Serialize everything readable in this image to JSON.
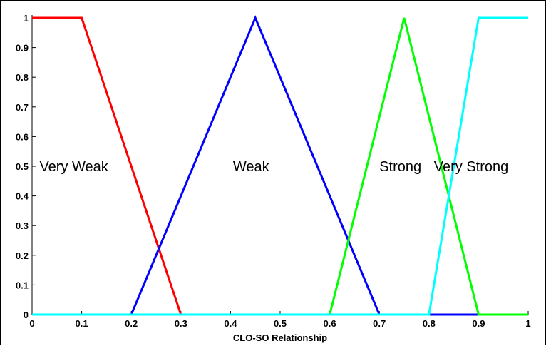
{
  "chart_data": {
    "type": "line",
    "xlabel": "CLO-SO Relationship",
    "ylabel": "",
    "xlim": [
      0,
      1
    ],
    "ylim": [
      0,
      1
    ],
    "xticks": [
      "0",
      "0.1",
      "0.2",
      "0.3",
      "0.4",
      "0.5",
      "0.6",
      "0.7",
      "0.8",
      "0.9",
      "1"
    ],
    "yticks": [
      "0",
      "0.1",
      "0.2",
      "0.3",
      "0.4",
      "0.5",
      "0.6",
      "0.7",
      "0.8",
      "0.9",
      "1"
    ],
    "grid": false,
    "series": [
      {
        "name": "Very Weak",
        "color": "#ff0000",
        "x": [
          0,
          0.1,
          0.3,
          1
        ],
        "y": [
          1,
          1,
          0,
          0
        ]
      },
      {
        "name": "Weak",
        "color": "#0000ff",
        "x": [
          0,
          0.2,
          0.45,
          0.7,
          1
        ],
        "y": [
          0,
          0,
          1,
          0,
          0
        ]
      },
      {
        "name": "Strong",
        "color": "#00ff00",
        "x": [
          0,
          0.6,
          0.75,
          0.9,
          1
        ],
        "y": [
          0,
          0,
          1,
          0,
          0
        ]
      },
      {
        "name": "Very Strong",
        "color": "#00ffff",
        "x": [
          0,
          0.8,
          0.9,
          1
        ],
        "y": [
          0,
          0,
          1,
          1
        ]
      }
    ]
  }
}
